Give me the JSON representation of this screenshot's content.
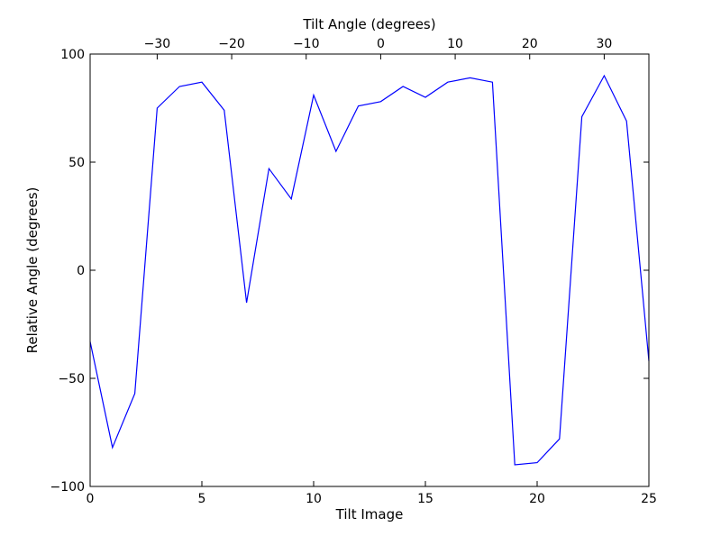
{
  "chart_data": {
    "type": "line",
    "xlabel": "Tilt Image",
    "ylabel": "Relative Angle (degrees)",
    "top_xlabel": "Tilt Angle (degrees)",
    "xlim": [
      0,
      25
    ],
    "ylim": [
      -100,
      100
    ],
    "x_ticks": [
      0,
      5,
      10,
      15,
      20,
      25
    ],
    "x_tick_labels": [
      "0",
      "5",
      "10",
      "15",
      "20",
      "25"
    ],
    "y_ticks": [
      -100,
      -50,
      0,
      50,
      100
    ],
    "y_tick_labels": [
      "−100",
      "−50",
      "0",
      "50",
      "100"
    ],
    "top_x_ticks": [
      -30,
      -20,
      -10,
      0,
      10,
      20,
      30
    ],
    "top_x_tick_labels": [
      "−30",
      "−20",
      "−10",
      "0",
      "10",
      "20",
      "30"
    ],
    "top_axis_map": {
      "bottom_at_zero_tilt": 13,
      "degrees_per_image": 3
    },
    "grid": false,
    "line_color": "#0000ff",
    "series": [
      {
        "x": [
          0,
          1,
          2,
          3,
          4,
          5,
          6,
          7,
          8,
          9,
          10,
          11,
          12,
          13,
          14,
          15,
          16,
          17,
          18,
          19,
          20,
          21,
          22,
          23,
          24,
          25
        ],
        "y": [
          -33,
          -82,
          -57,
          75,
          85,
          87,
          74,
          -15,
          47,
          33,
          81,
          55,
          76,
          78,
          85,
          80,
          87,
          89,
          87,
          -90,
          -89,
          -78,
          71,
          90,
          69,
          -42
        ]
      }
    ]
  }
}
